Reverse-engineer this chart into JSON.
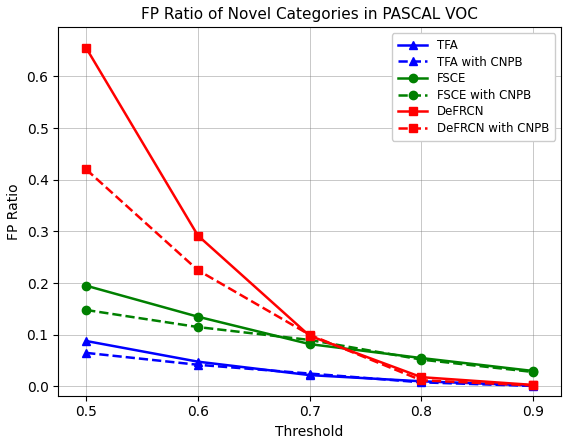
{
  "title": "FP Ratio of Novel Categories in PASCAL VOC",
  "xlabel": "Threshold",
  "ylabel": "FP Ratio",
  "x": [
    0.5,
    0.6,
    0.7,
    0.8,
    0.9
  ],
  "series": [
    {
      "label": "TFA",
      "color": "#0000FF",
      "linestyle": "-",
      "marker": "^",
      "markerfacecolor": "#0000FF",
      "values": [
        0.088,
        0.048,
        0.022,
        0.01,
        0.002
      ]
    },
    {
      "label": "TFA with CNPB",
      "color": "#0000FF",
      "linestyle": "--",
      "marker": "^",
      "markerfacecolor": "#0000FF",
      "values": [
        0.065,
        0.042,
        0.025,
        0.008,
        0.001
      ]
    },
    {
      "label": "FSCE",
      "color": "#008000",
      "linestyle": "-",
      "marker": "o",
      "markerfacecolor": "#008000",
      "values": [
        0.195,
        0.135,
        0.082,
        0.055,
        0.03
      ]
    },
    {
      "label": "FSCE with CNPB",
      "color": "#008000",
      "linestyle": "--",
      "marker": "o",
      "markerfacecolor": "#008000",
      "values": [
        0.148,
        0.115,
        0.09,
        0.052,
        0.028
      ]
    },
    {
      "label": "DeFRCN",
      "color": "#FF0000",
      "linestyle": "-",
      "marker": "s",
      "markerfacecolor": "#FF0000",
      "values": [
        0.655,
        0.292,
        0.098,
        0.018,
        0.003
      ]
    },
    {
      "label": "DeFRCN with CNPB",
      "color": "#FF0000",
      "linestyle": "--",
      "marker": "s",
      "markerfacecolor": "#FF0000",
      "values": [
        0.42,
        0.225,
        0.1,
        0.012,
        0.002
      ]
    }
  ],
  "xlim": [
    0.475,
    0.925
  ],
  "ylim": [
    -0.018,
    0.695
  ],
  "xticks": [
    0.5,
    0.6,
    0.7,
    0.8,
    0.9
  ],
  "yticks": [
    0.0,
    0.1,
    0.2,
    0.3,
    0.4,
    0.5,
    0.6
  ],
  "grid": true,
  "legend_loc": "upper right",
  "figsize": [
    5.68,
    4.46
  ],
  "dpi": 100,
  "title_fontsize": 11,
  "label_fontsize": 10,
  "legend_fontsize": 8.5,
  "linewidth": 1.8,
  "markersize": 6
}
